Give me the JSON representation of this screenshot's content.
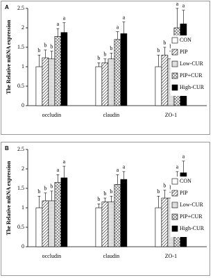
{
  "chart_data": [
    {
      "type": "bar",
      "panel": "A",
      "ylabel": "The Relative mRNA expression",
      "categories": [
        "occludin",
        "claudin",
        "ZO-1"
      ],
      "ylim": [
        0,
        2.5
      ],
      "yticks": [
        0,
        0.5,
        1,
        1.5,
        2,
        2.5
      ],
      "series": [
        {
          "name": "CON",
          "color": "#ffffff",
          "pattern": "none",
          "values": [
            1.0,
            1.0,
            1.0
          ],
          "errors": [
            0.3,
            0.1,
            0.3
          ],
          "letters": [
            "b",
            "b",
            "b"
          ]
        },
        {
          "name": "PIP",
          "color": "#ffffff",
          "pattern": "diagonal",
          "values": [
            1.23,
            1.1,
            1.3
          ],
          "errors": [
            0.2,
            0.1,
            0.2
          ],
          "letters": [
            "b",
            "b",
            "b"
          ]
        },
        {
          "name": "Low-CUR",
          "color": "#eeeeee",
          "pattern": "dots",
          "values": [
            1.2,
            1.2,
            1.2
          ],
          "errors": [
            0.2,
            0.15,
            0.2
          ],
          "letters": [
            "b",
            "b",
            "b"
          ]
        },
        {
          "name": "PIP+CUR",
          "color": "#ffffff",
          "pattern": "cross",
          "values": [
            1.78,
            1.7,
            2.0
          ],
          "errors": [
            0.2,
            0.2,
            0.5
          ],
          "letters": [
            "a",
            "a",
            "a"
          ]
        },
        {
          "name": "High-CUR",
          "color": "#000000",
          "pattern": "none",
          "values": [
            1.88,
            1.85,
            2.1
          ],
          "errors": [
            0.25,
            0.3,
            0.35
          ],
          "letters": [
            "a",
            "a",
            "a"
          ]
        }
      ]
    },
    {
      "type": "bar",
      "panel": "B",
      "ylabel": "The Relative mRNA expression",
      "categories": [
        "occludin",
        "claudin",
        "ZO-1"
      ],
      "ylim": [
        0,
        2.5
      ],
      "yticks": [
        0,
        0.5,
        1,
        1.5,
        2,
        2.5
      ],
      "series": [
        {
          "name": "CON",
          "color": "#ffffff",
          "pattern": "none",
          "values": [
            1.0,
            1.0,
            1.0
          ],
          "errors": [
            0.3,
            0.1,
            0.3
          ],
          "letters": [
            "b",
            "b",
            "b"
          ]
        },
        {
          "name": "PIP",
          "color": "#ffffff",
          "pattern": "diagonal",
          "values": [
            1.18,
            1.15,
            1.25
          ],
          "errors": [
            0.2,
            0.1,
            0.2
          ],
          "letters": [
            "b",
            "b",
            "b"
          ]
        },
        {
          "name": "Low-CUR",
          "color": "#eeeeee",
          "pattern": "dots",
          "values": [
            1.18,
            1.15,
            1.25
          ],
          "errors": [
            0.25,
            0.15,
            0.15
          ],
          "letters": [
            "b",
            "b",
            "b"
          ]
        },
        {
          "name": "PIP+CUR",
          "color": "#ffffff",
          "pattern": "cross",
          "values": [
            1.65,
            1.6,
            1.73
          ],
          "errors": [
            0.2,
            0.25,
            0.2
          ],
          "letters": [
            "a",
            "a",
            "a"
          ]
        },
        {
          "name": "High-CUR",
          "color": "#000000",
          "pattern": "none",
          "values": [
            1.77,
            1.73,
            1.9
          ],
          "errors": [
            0.3,
            0.2,
            0.3
          ],
          "letters": [
            "a",
            "a",
            "a"
          ]
        }
      ]
    }
  ]
}
